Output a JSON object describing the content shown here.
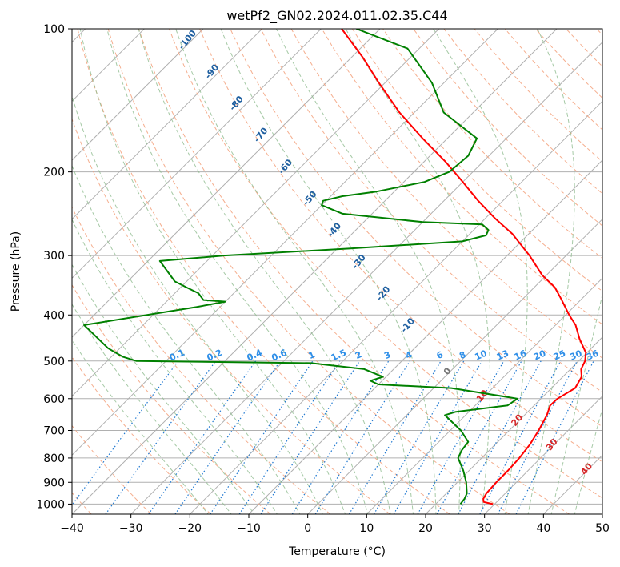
{
  "chart_data": {
    "type": "line",
    "subtype": "skew-T log-P diagram",
    "title": "wetPf2_GN02.2024.011.02.35.C44",
    "xlabel": "Temperature (°C)",
    "ylabel": "Pressure (hPa)",
    "xlim": [
      -40,
      50
    ],
    "ylim": [
      1050,
      100
    ],
    "y_scale": "log",
    "grid": true,
    "x_ticks": [
      -40,
      -30,
      -20,
      -10,
      0,
      10,
      20,
      30,
      40,
      50
    ],
    "x_tick_labels": [
      "−40",
      "−30",
      "−20",
      "−10",
      "0",
      "10",
      "20",
      "30",
      "40",
      "50"
    ],
    "y_ticks": [
      1000,
      900,
      800,
      700,
      600,
      500,
      400,
      300,
      200,
      100
    ],
    "y_tick_labels": [
      "1000",
      "900",
      "800",
      "700",
      "600",
      "500",
      "400",
      "300",
      "200",
      "100"
    ],
    "series": [
      {
        "role": "temperature",
        "color": "#ff0000",
        "points": [
          [
            1000,
            29.7
          ],
          [
            990,
            27.8
          ],
          [
            975,
            27.2
          ],
          [
            950,
            26.8
          ],
          [
            900,
            26.6
          ],
          [
            850,
            26.6
          ],
          [
            800,
            26.4
          ],
          [
            750,
            25.9
          ],
          [
            700,
            25.0
          ],
          [
            650,
            23.8
          ],
          [
            620,
            22.7
          ],
          [
            600,
            22.8
          ],
          [
            570,
            24.0
          ],
          [
            540,
            23.2
          ],
          [
            520,
            21.8
          ],
          [
            500,
            21.1
          ],
          [
            480,
            19.8
          ],
          [
            450,
            16.5
          ],
          [
            420,
            13.4
          ],
          [
            400,
            10.6
          ],
          [
            370,
            6.5
          ],
          [
            350,
            3.5
          ],
          [
            330,
            -0.7
          ],
          [
            300,
            -6.2
          ],
          [
            270,
            -12.8
          ],
          [
            250,
            -18.5
          ],
          [
            230,
            -24.2
          ],
          [
            210,
            -30.0
          ],
          [
            190,
            -36.5
          ],
          [
            170,
            -44.2
          ],
          [
            150,
            -52.5
          ],
          [
            130,
            -61.0
          ],
          [
            115,
            -68.0
          ],
          [
            100,
            -76.5
          ]
        ]
      },
      {
        "role": "dewpoint",
        "color": "#008000",
        "points": [
          [
            1000,
            24.2
          ],
          [
            975,
            24.0
          ],
          [
            950,
            23.5
          ],
          [
            900,
            21.5
          ],
          [
            850,
            19.0
          ],
          [
            800,
            16.0
          ],
          [
            770,
            15.3
          ],
          [
            740,
            15.0
          ],
          [
            700,
            11.8
          ],
          [
            650,
            6.5
          ],
          [
            640,
            7.7
          ],
          [
            620,
            15.5
          ],
          [
            600,
            16.0
          ],
          [
            570,
            3.0
          ],
          [
            560,
            -10.0
          ],
          [
            550,
            -12.0
          ],
          [
            540,
            -10.5
          ],
          [
            520,
            -15.0
          ],
          [
            505,
            -25.0
          ],
          [
            500,
            -55.0
          ],
          [
            490,
            -58.0
          ],
          [
            480,
            -60.0
          ],
          [
            470,
            -62.0
          ],
          [
            420,
            -70.0
          ],
          [
            385,
            -54.0
          ],
          [
            375,
            -50.0
          ],
          [
            372,
            -54.0
          ],
          [
            360,
            -56.0
          ],
          [
            350,
            -59.0
          ],
          [
            340,
            -62.0
          ],
          [
            308,
            -68.0
          ],
          [
            300,
            -58.0
          ],
          [
            290,
            -38.0
          ],
          [
            280,
            -20.0
          ],
          [
            272,
            -17.0
          ],
          [
            265,
            -17.5
          ],
          [
            258,
            -19.5
          ],
          [
            255,
            -30.0
          ],
          [
            245,
            -45.0
          ],
          [
            235,
            -50.0
          ],
          [
            230,
            -50.5
          ],
          [
            225,
            -48.0
          ],
          [
            220,
            -43.0
          ],
          [
            210,
            -36.5
          ],
          [
            200,
            -34.0
          ],
          [
            185,
            -33.5
          ],
          [
            170,
            -35.0
          ],
          [
            150,
            -45.0
          ],
          [
            130,
            -52.0
          ],
          [
            110,
            -62.0
          ],
          [
            100,
            -74.0
          ]
        ]
      }
    ],
    "dry_adiabats_celsius": [
      -100,
      -90,
      -80,
      -70,
      -60,
      -50,
      -40,
      -30,
      -20,
      -10
    ],
    "moist_adiabats_celsius": [
      0,
      10,
      20,
      30,
      40
    ],
    "mixing_ratio_labels": [
      "0.1",
      "0.2",
      "0.4",
      "0.6",
      "1",
      "1.5",
      "2",
      "3",
      "4",
      "6",
      "8",
      "10",
      "13",
      "16",
      "20",
      "25",
      "30",
      "36"
    ],
    "colors": {
      "temperature": "#ff0000",
      "dewpoint": "#008000",
      "dry_adiabat": "#f4a582",
      "moist_adiabat": "#8fbc8f",
      "mixing_ratio": "#1f78d1",
      "dry_label": "#1f5fa0",
      "moist_label": "#d62728",
      "grid": "#b0b0b0"
    }
  }
}
